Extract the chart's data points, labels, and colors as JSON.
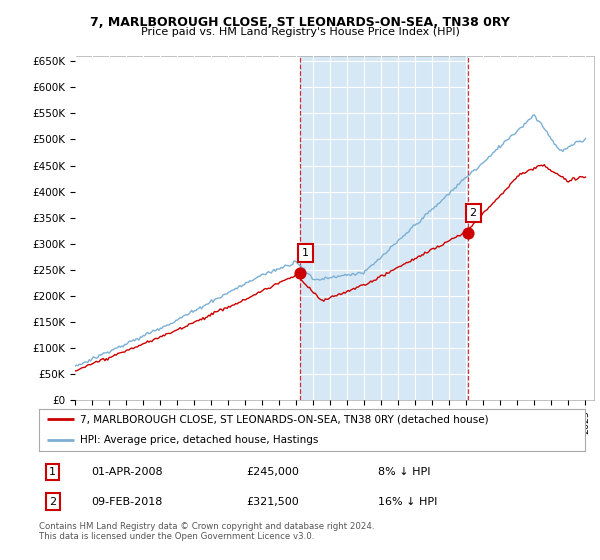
{
  "title": "7, MARLBOROUGH CLOSE, ST LEONARDS-ON-SEA, TN38 0RY",
  "subtitle": "Price paid vs. HM Land Registry's House Price Index (HPI)",
  "ylim": [
    0,
    660000
  ],
  "yticks": [
    0,
    50000,
    100000,
    150000,
    200000,
    250000,
    300000,
    350000,
    400000,
    450000,
    500000,
    550000,
    600000,
    650000
  ],
  "ytick_labels": [
    "£0",
    "£50K",
    "£100K",
    "£150K",
    "£200K",
    "£250K",
    "£300K",
    "£350K",
    "£400K",
    "£450K",
    "£500K",
    "£550K",
    "£600K",
    "£650K"
  ],
  "hpi_color": "#7bafd4",
  "price_color": "#cc0000",
  "shade_color": "#d6e8f5",
  "sale1_year": 2008.25,
  "sale1_price": 245000,
  "sale2_year": 2018.1,
  "sale2_price": 321500,
  "legend_house": "7, MARLBOROUGH CLOSE, ST LEONARDS-ON-SEA, TN38 0RY (detached house)",
  "legend_hpi": "HPI: Average price, detached house, Hastings",
  "note1_label": "1",
  "note1_date": "01-APR-2008",
  "note1_price": "£245,000",
  "note1_hpi": "8% ↓ HPI",
  "note2_label": "2",
  "note2_date": "09-FEB-2018",
  "note2_price": "£321,500",
  "note2_hpi": "16% ↓ HPI",
  "footer": "Contains HM Land Registry data © Crown copyright and database right 2024.\nThis data is licensed under the Open Government Licence v3.0.",
  "xmin": 1995,
  "xmax": 2025.5
}
